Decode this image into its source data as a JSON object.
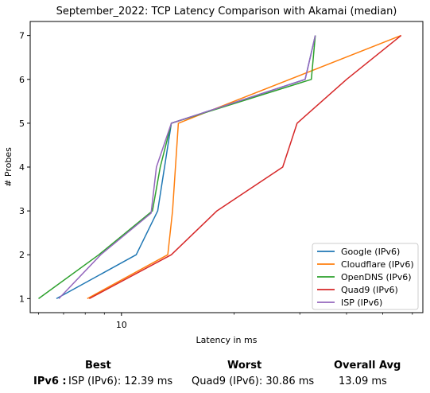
{
  "chart_data": {
    "type": "line",
    "title": "September_2022: TCP Latency Comparison with Akamai (median)",
    "xlabel": "Latency in ms",
    "ylabel": "# Probes",
    "xscale": "log",
    "xlim": [
      5.7,
      64.0
    ],
    "ylim": [
      0.68,
      7.32
    ],
    "xticks": [
      {
        "value": 10,
        "label": "10"
      }
    ],
    "yticks": [
      1,
      2,
      3,
      4,
      5,
      6,
      7
    ],
    "grid": false,
    "legend_position": "lower-right",
    "series": [
      {
        "name": "Google (IPv6)",
        "color": "#1f77b4",
        "x": [
          6.7,
          10.95,
          12.5,
          13.6,
          31.0,
          33.0
        ],
        "y": [
          1,
          2,
          3,
          5,
          6,
          7
        ]
      },
      {
        "name": "Cloudflare (IPv6)",
        "color": "#ff7f0e",
        "x": [
          8.1,
          13.3,
          13.7,
          14.2,
          56.0
        ],
        "y": [
          1,
          2,
          3,
          5,
          7
        ]
      },
      {
        "name": "OpenDNS (IPv6)",
        "color": "#2ca02c",
        "x": [
          6.0,
          8.7,
          12.1,
          12.7,
          13.6,
          32.2,
          33.0
        ],
        "y": [
          1,
          2,
          3,
          4,
          5,
          6,
          7
        ]
      },
      {
        "name": "Quad9 (IPv6)",
        "color": "#d62728",
        "x": [
          8.2,
          13.6,
          18.0,
          27.0,
          29.5,
          40.0,
          56.0
        ],
        "y": [
          1,
          2,
          3,
          4,
          5,
          6,
          7
        ]
      },
      {
        "name": "ISP (IPv6)",
        "color": "#9467bd",
        "x": [
          6.8,
          8.8,
          12.0,
          12.4,
          13.6,
          31.0,
          33.0
        ],
        "y": [
          1,
          2,
          2.95,
          4,
          5,
          6,
          7
        ]
      }
    ]
  },
  "summary": {
    "best_header": "Best",
    "worst_header": "Worst",
    "avg_header": "Overall Avg",
    "row_label": "IPv6 :",
    "best_value": "ISP (IPv6): 12.39 ms",
    "worst_value": "Quad9 (IPv6): 30.86 ms",
    "avg_value": "13.09 ms"
  }
}
